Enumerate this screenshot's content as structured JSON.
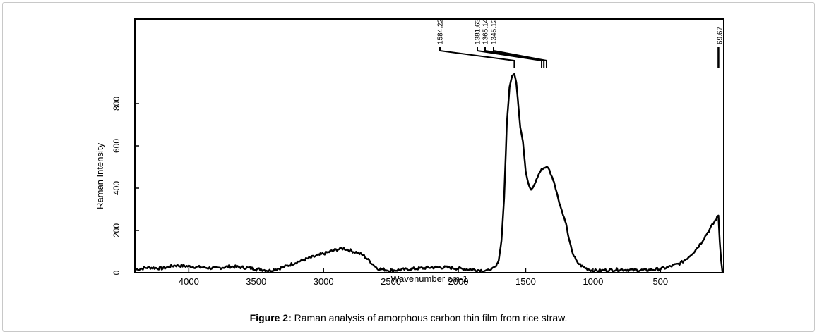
{
  "chart_data": {
    "type": "line",
    "title": "",
    "xlabel": "Wavenumber cm-1",
    "ylabel": "Raman Intensity",
    "xlim": [
      4400,
      30
    ],
    "ylim": [
      0,
      1200
    ],
    "x_ticks": [
      4000,
      3500,
      3000,
      2500,
      2000,
      1500,
      1000,
      500
    ],
    "x_tick_labels": [
      "4000",
      "3500",
      "3000",
      "2500",
      "2000",
      "1500",
      "1000",
      "500"
    ],
    "y_ticks": [
      0,
      200,
      400,
      600,
      800
    ],
    "y_tick_labels": [
      "0",
      "200",
      "400",
      "600",
      "800"
    ],
    "grid": false,
    "series": [
      {
        "color": "#000000",
        "x": [
          4390,
          4300,
          4200,
          4100,
          4000,
          3900,
          3800,
          3700,
          3600,
          3500,
          3400,
          3300,
          3200,
          3100,
          3000,
          2950,
          2900,
          2850,
          2800,
          2750,
          2700,
          2650,
          2600,
          2500,
          2400,
          2300,
          2200,
          2100,
          2000,
          1900,
          1800,
          1760,
          1720,
          1700,
          1680,
          1660,
          1640,
          1620,
          1600,
          1584,
          1570,
          1560,
          1540,
          1520,
          1500,
          1480,
          1460,
          1440,
          1420,
          1400,
          1381,
          1365,
          1345,
          1330,
          1310,
          1290,
          1270,
          1250,
          1230,
          1200,
          1180,
          1150,
          1120,
          1080,
          1050,
          1000,
          950,
          900,
          800,
          700,
          600,
          500,
          450,
          400,
          350,
          300,
          250,
          200,
          150,
          100,
          80,
          69.67,
          60,
          50,
          40,
          30
        ],
        "values": [
          15,
          25,
          20,
          35,
          30,
          25,
          20,
          30,
          25,
          18,
          10,
          25,
          50,
          70,
          90,
          100,
          110,
          115,
          105,
          95,
          80,
          50,
          20,
          10,
          15,
          20,
          25,
          25,
          20,
          15,
          10,
          15,
          30,
          60,
          150,
          350,
          700,
          880,
          935,
          940,
          900,
          830,
          690,
          620,
          480,
          420,
          390,
          410,
          440,
          470,
          490,
          495,
          500,
          495,
          460,
          430,
          380,
          330,
          290,
          230,
          160,
          90,
          50,
          30,
          20,
          10,
          10,
          12,
          15,
          12,
          12,
          18,
          25,
          35,
          45,
          70,
          100,
          140,
          190,
          240,
          260,
          270,
          150,
          60,
          10,
          5
        ]
      }
    ],
    "peak_markers": [
      {
        "label": "1584.22",
        "x": 1584.22
      },
      {
        "label": "1381.63",
        "x": 1381.63
      },
      {
        "label": "1365.14",
        "x": 1365.14
      },
      {
        "label": "1345.12",
        "x": 1345.12
      },
      {
        "label": "69.67",
        "x": 69.67
      }
    ]
  },
  "caption": {
    "label": "Figure 2:",
    "text": " Raman analysis of amorphous carbon thin film from rice straw."
  }
}
